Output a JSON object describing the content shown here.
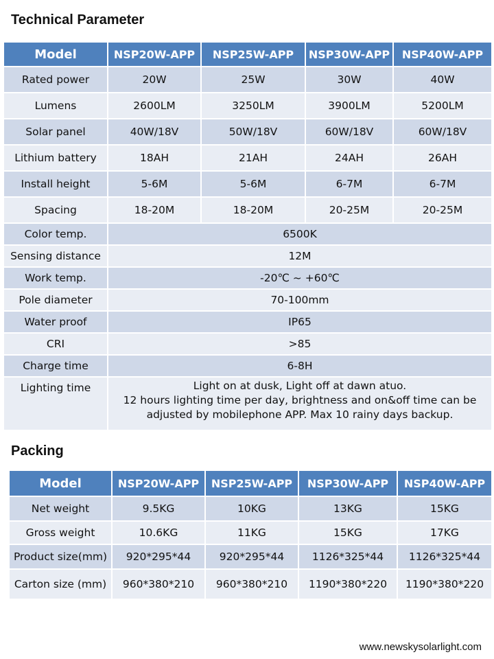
{
  "tech": {
    "title": "Technical Parameter",
    "headers": [
      "Model",
      "NSP20W-APP",
      "NSP25W-APP",
      "NSP30W-APP",
      "NSP40W-APP"
    ],
    "rows": [
      {
        "label": "Rated power",
        "values": [
          "20W",
          "25W",
          "30W",
          "40W"
        ]
      },
      {
        "label": "Lumens",
        "values": [
          "2600LM",
          "3250LM",
          "3900LM",
          "5200LM"
        ]
      },
      {
        "label": "Solar panel",
        "values": [
          "40W/18V",
          "50W/18V",
          "60W/18V",
          "60W/18V"
        ]
      },
      {
        "label": "Lithium battery",
        "values": [
          "18AH",
          "21AH",
          "24AH",
          "26AH"
        ]
      },
      {
        "label": "Install height",
        "values": [
          "5-6M",
          "5-6M",
          "6-7M",
          "6-7M"
        ]
      },
      {
        "label": "Spacing",
        "values": [
          "18-20M",
          "18-20M",
          "20-25M",
          "20-25M"
        ]
      }
    ],
    "shared_rows": [
      {
        "label": "Color temp.",
        "value": "6500K"
      },
      {
        "label": "Sensing distance",
        "value": "12M"
      },
      {
        "label": "Work temp.",
        "value": "-20℃ ~ +60℃"
      },
      {
        "label": "Pole diameter",
        "value": "70-100mm"
      },
      {
        "label": "Water proof",
        "value": "IP65"
      },
      {
        "label": "CRI",
        "value": ">85"
      },
      {
        "label": "Charge time",
        "value": "6-8H"
      }
    ],
    "lighting": {
      "label": "Lighting time",
      "lines": [
        "Light on at dusk, Light off at dawn atuo.",
        "12 hours lighting time per day, brightness and on&off time can be",
        "adjusted by mobilephone APP. Max 10 rainy days backup."
      ]
    }
  },
  "packing": {
    "title": "Packing",
    "headers": [
      "Model",
      "NSP20W-APP",
      "NSP25W-APP",
      "NSP30W-APP",
      "NSP40W-APP"
    ],
    "rows": [
      {
        "label": "Net weight",
        "values": [
          "9.5KG",
          "10KG",
          "13KG",
          "15KG"
        ]
      },
      {
        "label": "Gross weight",
        "values": [
          "10.6KG",
          "11KG",
          "15KG",
          "17KG"
        ]
      },
      {
        "label": "Product size(mm)",
        "values": [
          "920*295*44",
          "920*295*44",
          "1126*325*44",
          "1126*325*44"
        ]
      },
      {
        "label": "Carton size (mm)",
        "values": [
          "960*380*210",
          "960*380*210",
          "1190*380*220",
          "1190*380*220"
        ]
      }
    ]
  },
  "footer": {
    "website": "www.newskysolarlight.com"
  }
}
